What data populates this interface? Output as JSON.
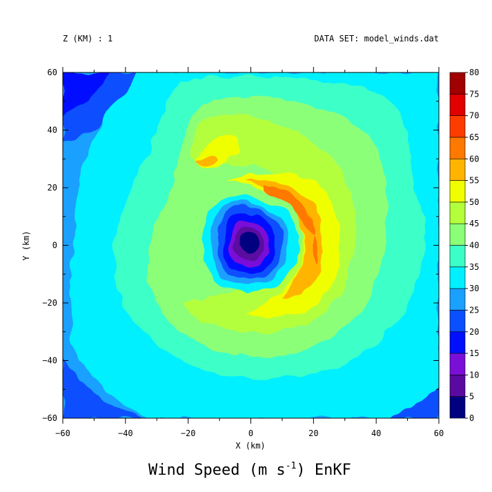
{
  "header": {
    "z_label": "Z (KM) : 1",
    "dataset_label": "DATA SET: model_winds.dat"
  },
  "chart_data": {
    "type": "heatmap",
    "title_main": "Wind Speed (m s",
    "title_exp": "-1",
    "title_tail": ") EnKF",
    "xlabel": "X (km)",
    "ylabel": "Y (km)",
    "xlim": [
      -60,
      60
    ],
    "ylim": [
      -60,
      60
    ],
    "x_ticks": [
      -60,
      -40,
      -20,
      0,
      20,
      40,
      60
    ],
    "y_ticks": [
      -60,
      -40,
      -20,
      0,
      20,
      40,
      60
    ],
    "colorbar": {
      "levels": [
        0,
        5,
        10,
        15,
        20,
        25,
        30,
        35,
        40,
        45,
        50,
        55,
        60,
        65,
        70,
        75,
        80
      ],
      "colors": [
        "#000080",
        "#5a0aa0",
        "#7a10d8",
        "#0010ff",
        "#0a50ff",
        "#1aa0ff",
        "#00f0ff",
        "#3cffc8",
        "#8cff78",
        "#b4ff3c",
        "#f0ff00",
        "#ffb400",
        "#ff7800",
        "#ff3c00",
        "#e00000",
        "#a00000"
      ]
    },
    "field": {
      "description_units": "m s-1",
      "vortex_center": [
        -1,
        1
      ],
      "eye_min_speed": 3,
      "max_speed_region": [
        [
          10,
          20
        ],
        [
          20,
          -10
        ]
      ],
      "max_speed": 62
    }
  }
}
